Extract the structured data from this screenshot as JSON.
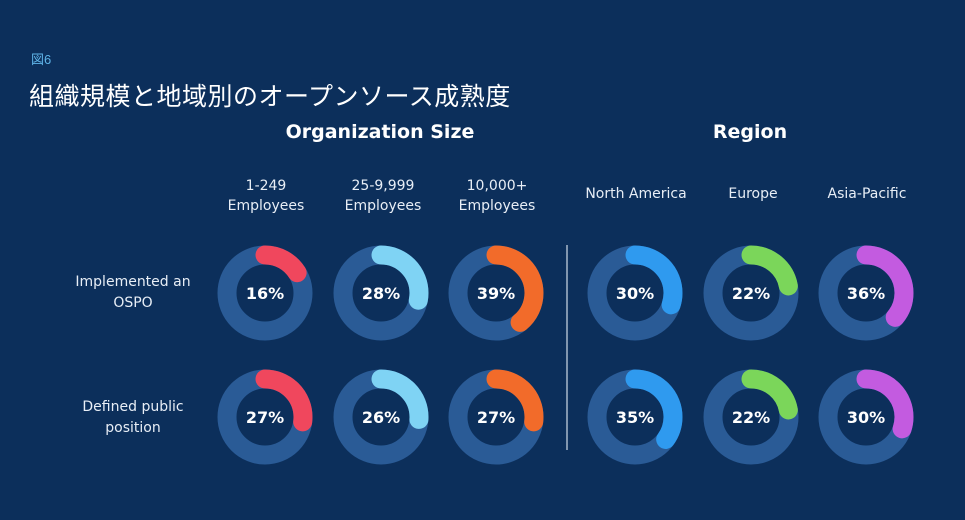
{
  "figure": {
    "label": "図6",
    "title": "組織規模と地域別のオープンソース成熟度"
  },
  "groups": {
    "organization": "Organization Size",
    "region": "Region"
  },
  "columns": [
    {
      "label": "1-249\nEmployees",
      "color": "#f0475d"
    },
    {
      "label": "25-9,999\nEmployees",
      "color": "#7fd3f4"
    },
    {
      "label": "10,000+\nEmployees",
      "color": "#f26b2a"
    },
    {
      "label": "North America",
      "color": "#2f9aef"
    },
    {
      "label": "Europe",
      "color": "#7bd65a"
    },
    {
      "label": "Asia-Pacific",
      "color": "#c35be0"
    }
  ],
  "rows": [
    {
      "label": "Implemented an OSPO"
    },
    {
      "label": "Defined public position"
    }
  ],
  "chart_data": {
    "type": "donut-grid",
    "unit": "%",
    "ring_color": "#2a5b96",
    "categories": [
      "1-249 Employees",
      "25-9,999 Employees",
      "10,000+ Employees",
      "North America",
      "Europe",
      "Asia-Pacific"
    ],
    "series": [
      {
        "name": "Implemented an OSPO",
        "values": [
          16,
          28,
          39,
          30,
          22,
          36
        ]
      },
      {
        "name": "Defined public position",
        "values": [
          27,
          26,
          27,
          35,
          22,
          30
        ]
      }
    ]
  }
}
